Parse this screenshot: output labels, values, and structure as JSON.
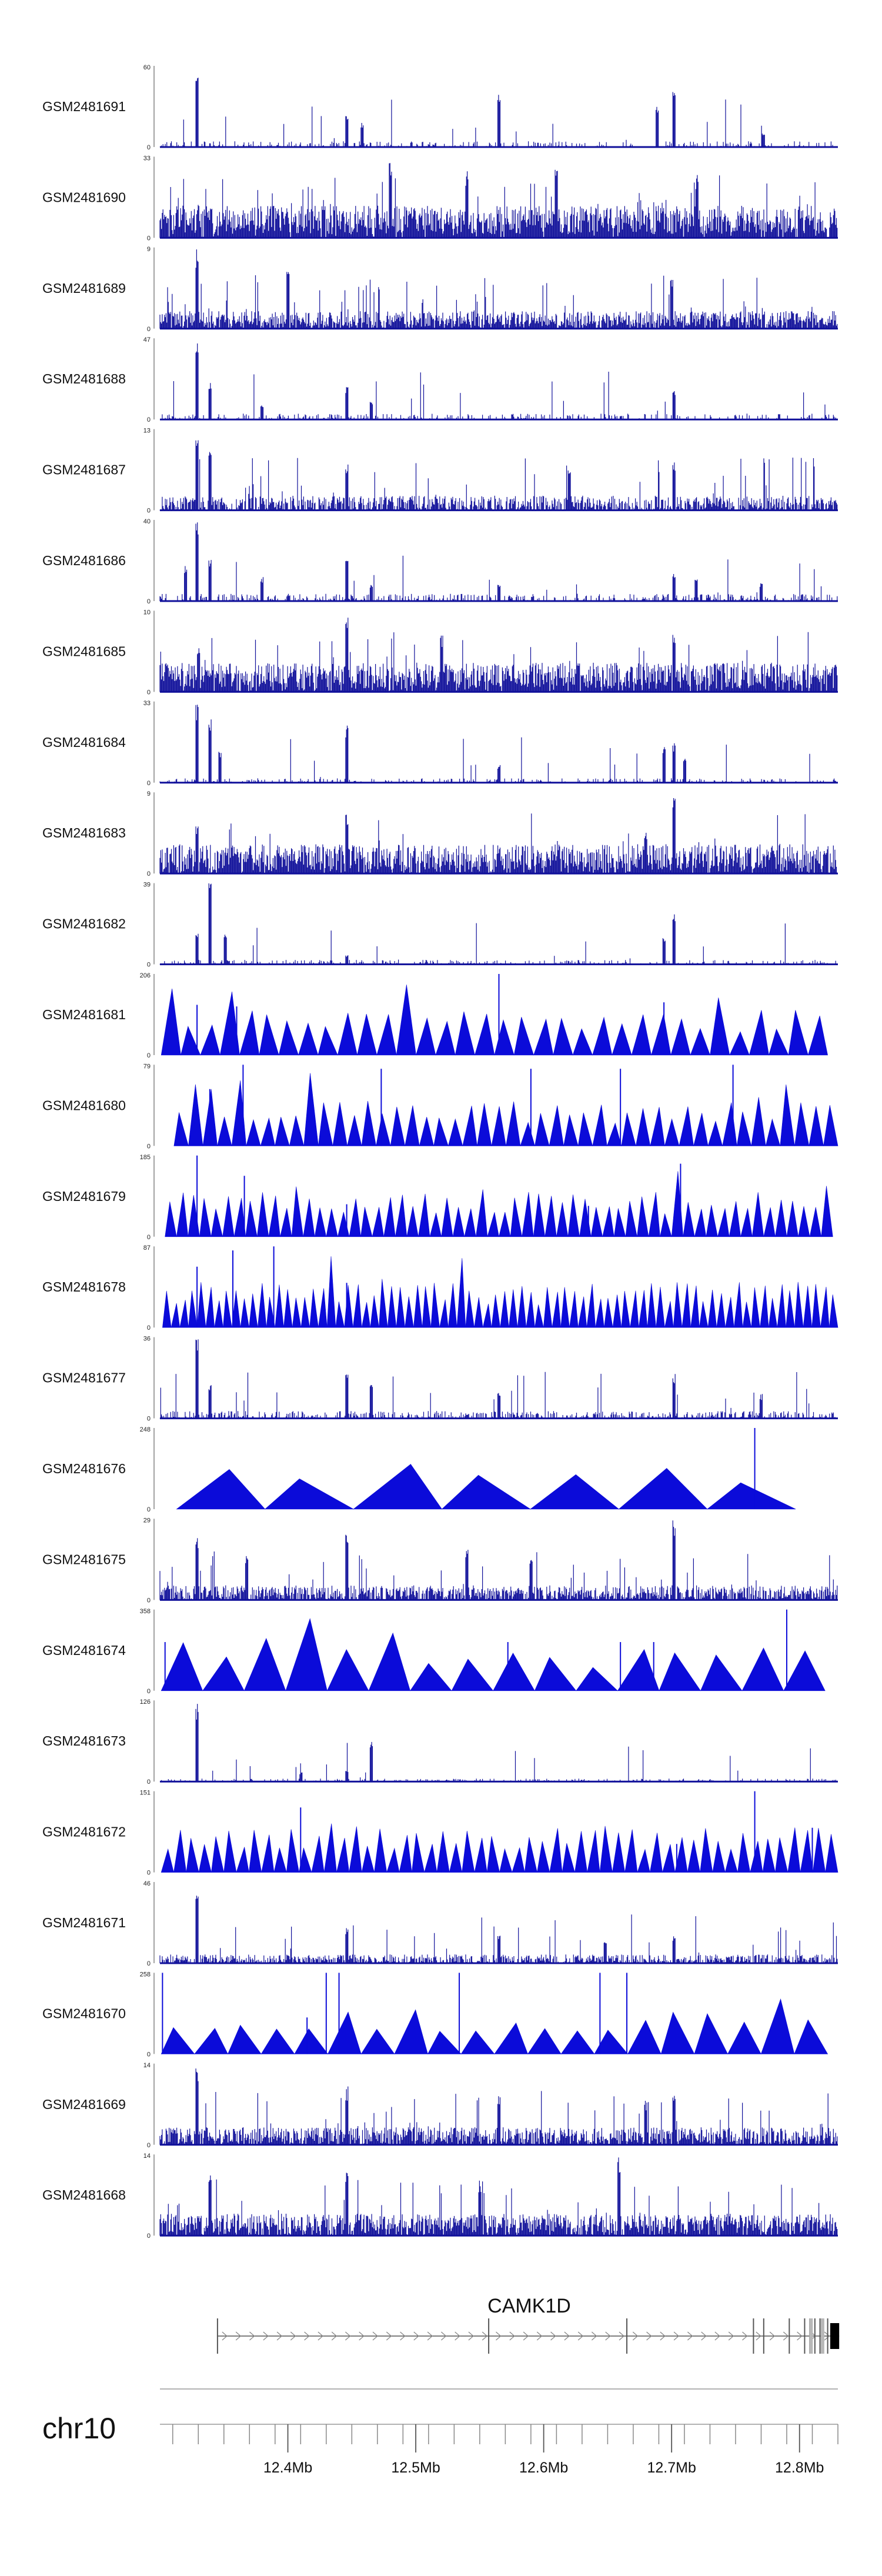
{
  "chart_data": {
    "type": "genome_browser",
    "chromosome": "chr10",
    "x_range_mb": [
      12.3,
      12.83
    ],
    "axis_ticks": [
      "12.4Mb",
      "12.5Mb",
      "12.6Mb",
      "12.7Mb",
      "12.8Mb"
    ],
    "axis_tick_values_mb": [
      12.4,
      12.5,
      12.6,
      12.7,
      12.8
    ],
    "track_color": "#0b0bd9",
    "coverage_color": "#10109a",
    "tracks": [
      {
        "id": "GSM2481691",
        "label": "GSM2481691",
        "ymin": "0",
        "ymax": "60",
        "style": "coverage",
        "density": 0.25,
        "base": 0.04,
        "peaks_mb": [
          {
            "x": 12.329,
            "h": 1.0
          },
          {
            "x": 12.446,
            "h": 0.4
          },
          {
            "x": 12.565,
            "h": 0.65
          },
          {
            "x": 12.689,
            "h": 0.55
          },
          {
            "x": 12.702,
            "h": 0.8
          },
          {
            "x": 12.458,
            "h": 0.3
          },
          {
            "x": 12.772,
            "h": 0.18
          }
        ]
      },
      {
        "id": "GSM2481690",
        "label": "GSM2481690",
        "ymin": "0",
        "ymax": "33",
        "style": "coverage",
        "density": 0.95,
        "base": 0.22,
        "peaks_mb": [
          {
            "x": 12.48,
            "h": 0.95
          },
          {
            "x": 12.61,
            "h": 0.9
          },
          {
            "x": 12.54,
            "h": 0.85
          },
          {
            "x": 12.72,
            "h": 0.8
          }
        ]
      },
      {
        "id": "GSM2481689",
        "label": "GSM2481689",
        "ymin": "0",
        "ymax": "9",
        "style": "coverage",
        "density": 0.9,
        "base": 0.12,
        "peaks_mb": [
          {
            "x": 12.329,
            "h": 1.0
          },
          {
            "x": 12.4,
            "h": 0.7
          },
          {
            "x": 12.7,
            "h": 0.65
          }
        ]
      },
      {
        "id": "GSM2481688",
        "label": "GSM2481688",
        "ymin": "0",
        "ymax": "47",
        "style": "coverage",
        "density": 0.3,
        "base": 0.04,
        "peaks_mb": [
          {
            "x": 12.329,
            "h": 1.0
          },
          {
            "x": 12.339,
            "h": 0.5
          },
          {
            "x": 12.446,
            "h": 0.42
          },
          {
            "x": 12.465,
            "h": 0.22
          },
          {
            "x": 12.702,
            "h": 0.35
          },
          {
            "x": 12.38,
            "h": 0.2
          }
        ]
      },
      {
        "id": "GSM2481687",
        "label": "GSM2481687",
        "ymin": "0",
        "ymax": "13",
        "style": "coverage",
        "density": 0.75,
        "base": 0.1,
        "peaks_mb": [
          {
            "x": 12.329,
            "h": 1.0
          },
          {
            "x": 12.339,
            "h": 0.75
          },
          {
            "x": 12.446,
            "h": 0.6
          },
          {
            "x": 12.62,
            "h": 0.55
          },
          {
            "x": 12.702,
            "h": 0.6
          }
        ]
      },
      {
        "id": "GSM2481686",
        "label": "GSM2481686",
        "ymin": "0",
        "ymax": "40",
        "style": "coverage",
        "density": 0.35,
        "base": 0.05,
        "peaks_mb": [
          {
            "x": 12.329,
            "h": 1.0
          },
          {
            "x": 12.339,
            "h": 0.55
          },
          {
            "x": 12.32,
            "h": 0.45
          },
          {
            "x": 12.38,
            "h": 0.3
          },
          {
            "x": 12.446,
            "h": 0.5
          },
          {
            "x": 12.465,
            "h": 0.2
          },
          {
            "x": 12.565,
            "h": 0.2
          },
          {
            "x": 12.702,
            "h": 0.35
          },
          {
            "x": 12.719,
            "h": 0.28
          },
          {
            "x": 12.77,
            "h": 0.22
          }
        ]
      },
      {
        "id": "GSM2481685",
        "label": "GSM2481685",
        "ymin": "0",
        "ymax": "10",
        "style": "coverage",
        "density": 0.95,
        "base": 0.2,
        "peaks_mb": [
          {
            "x": 12.446,
            "h": 1.0
          },
          {
            "x": 12.52,
            "h": 0.7
          },
          {
            "x": 12.702,
            "h": 0.75
          },
          {
            "x": 12.33,
            "h": 0.6
          }
        ]
      },
      {
        "id": "GSM2481684",
        "label": "GSM2481684",
        "ymin": "0",
        "ymax": "33",
        "style": "coverage",
        "density": 0.25,
        "base": 0.03,
        "peaks_mb": [
          {
            "x": 12.329,
            "h": 1.0
          },
          {
            "x": 12.339,
            "h": 0.85
          },
          {
            "x": 12.347,
            "h": 0.4
          },
          {
            "x": 12.446,
            "h": 0.72
          },
          {
            "x": 12.565,
            "h": 0.22
          },
          {
            "x": 12.694,
            "h": 0.45
          },
          {
            "x": 12.702,
            "h": 0.5
          },
          {
            "x": 12.71,
            "h": 0.3
          }
        ]
      },
      {
        "id": "GSM2481683",
        "label": "GSM2481683",
        "ymin": "0",
        "ymax": "9",
        "style": "coverage",
        "density": 0.9,
        "base": 0.2,
        "peaks_mb": [
          {
            "x": 12.446,
            "h": 0.75
          },
          {
            "x": 12.702,
            "h": 1.0
          },
          {
            "x": 12.329,
            "h": 0.6
          },
          {
            "x": 12.68,
            "h": 0.55
          }
        ]
      },
      {
        "id": "GSM2481682",
        "label": "GSM2481682",
        "ymin": "0",
        "ymax": "39",
        "style": "coverage",
        "density": 0.25,
        "base": 0.03,
        "peaks_mb": [
          {
            "x": 12.339,
            "h": 1.0
          },
          {
            "x": 12.329,
            "h": 0.42
          },
          {
            "x": 12.351,
            "h": 0.38
          },
          {
            "x": 12.694,
            "h": 0.35
          },
          {
            "x": 12.702,
            "h": 0.65
          },
          {
            "x": 12.446,
            "h": 0.12
          }
        ]
      },
      {
        "id": "GSM2481681",
        "label": "GSM2481681",
        "ymin": "0",
        "ymax": "206",
        "style": "triangles",
        "count": 34,
        "start_mb": 12.301,
        "end_mb": 12.822,
        "peaks_mb": [
          {
            "x": 12.565,
            "h": 1.0
          },
          {
            "x": 12.694,
            "h": 0.65
          },
          {
            "x": 12.329,
            "h": 0.62
          },
          {
            "x": 12.36,
            "h": 0.6
          }
        ]
      },
      {
        "id": "GSM2481680",
        "label": "GSM2481680",
        "ymin": "0",
        "ymax": "79",
        "style": "triangles",
        "count": 46,
        "start_mb": 12.311,
        "end_mb": 12.83,
        "peaks_mb": [
          {
            "x": 12.365,
            "h": 1.0
          },
          {
            "x": 12.473,
            "h": 0.95
          },
          {
            "x": 12.59,
            "h": 0.95
          },
          {
            "x": 12.66,
            "h": 0.95
          },
          {
            "x": 12.748,
            "h": 1.0
          },
          {
            "x": 12.339,
            "h": 0.7
          }
        ]
      },
      {
        "id": "GSM2481679",
        "label": "GSM2481679",
        "ymin": "0",
        "ymax": "185",
        "style": "triangles",
        "count": 58,
        "start_mb": 12.304,
        "end_mb": 12.826,
        "peaks_mb": [
          {
            "x": 12.329,
            "h": 1.0
          },
          {
            "x": 12.366,
            "h": 0.75
          },
          {
            "x": 12.707,
            "h": 0.9
          },
          {
            "x": 12.446,
            "h": 0.4
          },
          {
            "x": 12.635,
            "h": 0.38
          }
        ]
      },
      {
        "id": "GSM2481678",
        "label": "GSM2481678",
        "ymin": "0",
        "ymax": "87",
        "style": "triangles",
        "count": 78,
        "start_mb": 12.302,
        "end_mb": 12.83,
        "peaks_mb": [
          {
            "x": 12.389,
            "h": 1.0
          },
          {
            "x": 12.357,
            "h": 0.95
          },
          {
            "x": 12.329,
            "h": 0.75
          },
          {
            "x": 12.446,
            "h": 0.55
          }
        ]
      },
      {
        "id": "GSM2481677",
        "label": "GSM2481677",
        "ymin": "0",
        "ymax": "36",
        "style": "coverage",
        "density": 0.45,
        "base": 0.05,
        "peaks_mb": [
          {
            "x": 12.329,
            "h": 1.0
          },
          {
            "x": 12.339,
            "h": 0.45
          },
          {
            "x": 12.446,
            "h": 0.55
          },
          {
            "x": 12.465,
            "h": 0.5
          },
          {
            "x": 12.565,
            "h": 0.35
          },
          {
            "x": 12.702,
            "h": 0.55
          },
          {
            "x": 12.77,
            "h": 0.3
          }
        ]
      },
      {
        "id": "GSM2481676",
        "label": "GSM2481676",
        "ymin": "0",
        "ymax": "248",
        "style": "triangles",
        "count": 7,
        "start_mb": 12.313,
        "end_mb": 12.797,
        "peaks_mb": [
          {
            "x": 12.765,
            "h": 1.0
          }
        ]
      },
      {
        "id": "GSM2481675",
        "label": "GSM2481675",
        "ymin": "0",
        "ymax": "29",
        "style": "coverage",
        "density": 0.75,
        "base": 0.1,
        "peaks_mb": [
          {
            "x": 12.446,
            "h": 0.9
          },
          {
            "x": 12.702,
            "h": 1.0
          },
          {
            "x": 12.329,
            "h": 0.8
          },
          {
            "x": 12.54,
            "h": 0.7
          },
          {
            "x": 12.368,
            "h": 0.55
          },
          {
            "x": 12.59,
            "h": 0.5
          }
        ]
      },
      {
        "id": "GSM2481674",
        "label": "GSM2481674",
        "ymin": "0",
        "ymax": "358",
        "style": "triangles",
        "count": 16,
        "start_mb": 12.301,
        "end_mb": 12.82,
        "peaks_mb": [
          {
            "x": 12.79,
            "h": 1.0
          },
          {
            "x": 12.572,
            "h": 0.6
          },
          {
            "x": 12.66,
            "h": 0.6
          },
          {
            "x": 12.686,
            "h": 0.6
          },
          {
            "x": 12.304,
            "h": 0.6
          }
        ]
      },
      {
        "id": "GSM2481673",
        "label": "GSM2481673",
        "ymin": "0",
        "ymax": "126",
        "style": "coverage",
        "density": 0.25,
        "base": 0.02,
        "peaks_mb": [
          {
            "x": 12.329,
            "h": 1.0
          },
          {
            "x": 12.465,
            "h": 0.5
          },
          {
            "x": 12.446,
            "h": 0.15
          },
          {
            "x": 12.41,
            "h": 0.12
          }
        ]
      },
      {
        "id": "GSM2481672",
        "label": "GSM2481672",
        "ymin": "0",
        "ymax": "151",
        "style": "triangles",
        "count": 54,
        "start_mb": 12.301,
        "end_mb": 12.83,
        "peaks_mb": [
          {
            "x": 12.765,
            "h": 1.0
          },
          {
            "x": 12.41,
            "h": 0.8
          },
          {
            "x": 12.52,
            "h": 0.35
          },
          {
            "x": 12.704,
            "h": 0.35
          },
          {
            "x": 12.81,
            "h": 0.55
          }
        ]
      },
      {
        "id": "GSM2481671",
        "label": "GSM2481671",
        "ymin": "0",
        "ymax": "46",
        "style": "coverage",
        "density": 0.7,
        "base": 0.06,
        "peaks_mb": [
          {
            "x": 12.329,
            "h": 1.0
          },
          {
            "x": 12.446,
            "h": 0.45
          },
          {
            "x": 12.565,
            "h": 0.35
          },
          {
            "x": 12.648,
            "h": 0.3
          },
          {
            "x": 12.702,
            "h": 0.35
          }
        ]
      },
      {
        "id": "GSM2481670",
        "label": "GSM2481670",
        "ymin": "0",
        "ymax": "258",
        "style": "triangles",
        "count": 20,
        "start_mb": 12.301,
        "end_mb": 12.822,
        "peaks_mb": [
          {
            "x": 12.302,
            "h": 1.0
          },
          {
            "x": 12.43,
            "h": 1.0
          },
          {
            "x": 12.44,
            "h": 1.0
          },
          {
            "x": 12.534,
            "h": 1.0
          },
          {
            "x": 12.644,
            "h": 1.0
          },
          {
            "x": 12.665,
            "h": 1.0
          },
          {
            "x": 12.415,
            "h": 0.45
          }
        ]
      },
      {
        "id": "GSM2481669",
        "label": "GSM2481669",
        "ymin": "0",
        "ymax": "14",
        "style": "coverage",
        "density": 0.85,
        "base": 0.12,
        "peaks_mb": [
          {
            "x": 12.329,
            "h": 1.0
          },
          {
            "x": 12.446,
            "h": 0.72
          },
          {
            "x": 12.565,
            "h": 0.6
          },
          {
            "x": 12.702,
            "h": 0.7
          },
          {
            "x": 12.68,
            "h": 0.55
          }
        ]
      },
      {
        "id": "GSM2481668",
        "label": "GSM2481668",
        "ymin": "0",
        "ymax": "14",
        "style": "coverage",
        "density": 0.9,
        "base": 0.15,
        "peaks_mb": [
          {
            "x": 12.659,
            "h": 1.0
          },
          {
            "x": 12.339,
            "h": 0.85
          },
          {
            "x": 12.446,
            "h": 0.8
          },
          {
            "x": 12.55,
            "h": 0.7
          }
        ]
      }
    ],
    "gene": {
      "name": "CAMK1D",
      "start_mb": 12.345,
      "end_mb": 12.831,
      "strand": "+",
      "exons_mb": [
        12.345,
        12.557,
        12.665,
        12.764,
        12.772,
        12.792,
        12.804,
        12.808,
        12.812,
        12.816,
        12.822
      ],
      "gray_blocks_mb": [
        12.809,
        12.818
      ],
      "utr_block_mb": [
        12.824,
        12.831
      ]
    }
  }
}
